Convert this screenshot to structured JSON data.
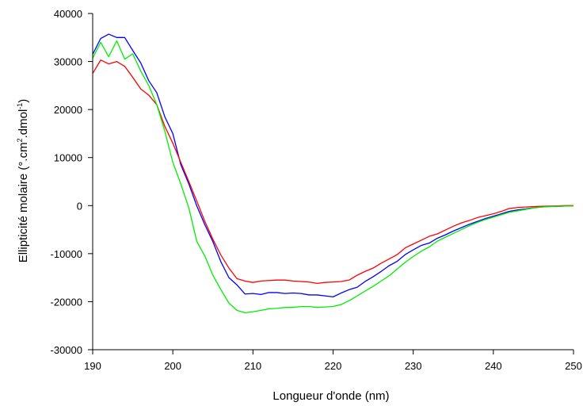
{
  "chart_data": {
    "type": "line",
    "title": "",
    "xlabel": "Longueur d'onde (nm)",
    "ylabel": {
      "before": "Ellipticité molaire (°.cm",
      "sup1": "2",
      "middle": ".dmol",
      "sup2": "-1",
      "after": ")"
    },
    "xlim": [
      190,
      250
    ],
    "ylim": [
      -30000,
      40000
    ],
    "x_ticks": [
      "190",
      "200",
      "210",
      "220",
      "230",
      "240",
      "250"
    ],
    "y_ticks": [
      "-30000",
      "-20000",
      "-10000",
      "0",
      "10000",
      "20000",
      "30000",
      "40000"
    ],
    "grid": false,
    "legend": "none",
    "series": [
      {
        "color": "#0000ff",
        "points": [
          [
            190,
            31500
          ],
          [
            191,
            34800
          ],
          [
            192,
            35700
          ],
          [
            193,
            35000
          ],
          [
            194,
            35000
          ],
          [
            195,
            32300
          ],
          [
            196,
            29700
          ],
          [
            197,
            26000
          ],
          [
            198,
            23500
          ],
          [
            199,
            18500
          ],
          [
            200,
            15000
          ],
          [
            201,
            8500
          ],
          [
            202,
            4500
          ],
          [
            203,
            -100
          ],
          [
            204,
            -4000
          ],
          [
            205,
            -7500
          ],
          [
            206,
            -11700
          ],
          [
            207,
            -15000
          ],
          [
            208,
            -16500
          ],
          [
            209,
            -18400
          ],
          [
            210,
            -18300
          ],
          [
            211,
            -18500
          ],
          [
            212,
            -18100
          ],
          [
            213,
            -18100
          ],
          [
            214,
            -18300
          ],
          [
            215,
            -18200
          ],
          [
            216,
            -18300
          ],
          [
            217,
            -18600
          ],
          [
            218,
            -18600
          ],
          [
            219,
            -18800
          ],
          [
            220,
            -19000
          ],
          [
            221,
            -18200
          ],
          [
            222,
            -17500
          ],
          [
            223,
            -17000
          ],
          [
            224,
            -15800
          ],
          [
            225,
            -14800
          ],
          [
            226,
            -13700
          ],
          [
            227,
            -12500
          ],
          [
            228,
            -11600
          ],
          [
            229,
            -10200
          ],
          [
            230,
            -9200
          ],
          [
            231,
            -8300
          ],
          [
            232,
            -7800
          ],
          [
            233,
            -6800
          ],
          [
            234,
            -6100
          ],
          [
            235,
            -5300
          ],
          [
            236,
            -4600
          ],
          [
            237,
            -3900
          ],
          [
            238,
            -3300
          ],
          [
            239,
            -2700
          ],
          [
            240,
            -2200
          ],
          [
            241,
            -1700
          ],
          [
            242,
            -1200
          ],
          [
            243,
            -900
          ],
          [
            244,
            -700
          ],
          [
            245,
            -450
          ],
          [
            246,
            -300
          ],
          [
            247,
            -200
          ],
          [
            248,
            -150
          ],
          [
            249,
            -100
          ],
          [
            250,
            -100
          ]
        ]
      },
      {
        "color": "#ff0000",
        "points": [
          [
            190,
            27500
          ],
          [
            191,
            30300
          ],
          [
            192,
            29500
          ],
          [
            193,
            30000
          ],
          [
            194,
            29000
          ],
          [
            195,
            26700
          ],
          [
            196,
            24300
          ],
          [
            197,
            23000
          ],
          [
            198,
            21000
          ],
          [
            199,
            16500
          ],
          [
            200,
            13000
          ],
          [
            201,
            9000
          ],
          [
            202,
            5000
          ],
          [
            203,
            900
          ],
          [
            204,
            -3300
          ],
          [
            205,
            -7000
          ],
          [
            206,
            -10300
          ],
          [
            207,
            -13000
          ],
          [
            208,
            -15200
          ],
          [
            209,
            -15700
          ],
          [
            210,
            -16000
          ],
          [
            211,
            -15700
          ],
          [
            212,
            -15600
          ],
          [
            213,
            -15500
          ],
          [
            214,
            -15500
          ],
          [
            215,
            -15700
          ],
          [
            216,
            -15800
          ],
          [
            217,
            -15900
          ],
          [
            218,
            -16200
          ],
          [
            219,
            -16000
          ],
          [
            220,
            -15900
          ],
          [
            221,
            -15800
          ],
          [
            222,
            -15500
          ],
          [
            223,
            -14500
          ],
          [
            224,
            -13700
          ],
          [
            225,
            -13000
          ],
          [
            226,
            -12000
          ],
          [
            227,
            -11100
          ],
          [
            228,
            -10200
          ],
          [
            229,
            -8800
          ],
          [
            230,
            -8000
          ],
          [
            231,
            -7200
          ],
          [
            232,
            -6400
          ],
          [
            233,
            -5900
          ],
          [
            234,
            -5100
          ],
          [
            235,
            -4300
          ],
          [
            236,
            -3600
          ],
          [
            237,
            -3100
          ],
          [
            238,
            -2500
          ],
          [
            239,
            -2100
          ],
          [
            240,
            -1700
          ],
          [
            241,
            -1200
          ],
          [
            242,
            -600
          ],
          [
            243,
            -400
          ],
          [
            244,
            -300
          ],
          [
            245,
            -200
          ],
          [
            246,
            -150
          ],
          [
            247,
            -100
          ],
          [
            248,
            -50
          ],
          [
            249,
            0
          ],
          [
            250,
            0
          ]
        ]
      },
      {
        "color": "#00ee00",
        "points": [
          [
            190,
            30700
          ],
          [
            191,
            34000
          ],
          [
            192,
            31000
          ],
          [
            193,
            34300
          ],
          [
            194,
            30500
          ],
          [
            195,
            31600
          ],
          [
            196,
            28000
          ],
          [
            197,
            25000
          ],
          [
            198,
            21000
          ],
          [
            199,
            15500
          ],
          [
            200,
            9000
          ],
          [
            201,
            4500
          ],
          [
            202,
            -500
          ],
          [
            203,
            -7500
          ],
          [
            204,
            -10500
          ],
          [
            205,
            -14500
          ],
          [
            206,
            -17500
          ],
          [
            207,
            -20300
          ],
          [
            208,
            -21800
          ],
          [
            209,
            -22300
          ],
          [
            210,
            -22100
          ],
          [
            211,
            -21800
          ],
          [
            212,
            -21500
          ],
          [
            213,
            -21400
          ],
          [
            214,
            -21200
          ],
          [
            215,
            -21200
          ],
          [
            216,
            -21000
          ],
          [
            217,
            -21000
          ],
          [
            218,
            -21200
          ],
          [
            219,
            -21100
          ],
          [
            220,
            -21000
          ],
          [
            221,
            -20600
          ],
          [
            222,
            -19800
          ],
          [
            223,
            -18800
          ],
          [
            224,
            -17800
          ],
          [
            225,
            -16800
          ],
          [
            226,
            -15700
          ],
          [
            227,
            -14600
          ],
          [
            228,
            -13200
          ],
          [
            229,
            -11800
          ],
          [
            230,
            -10600
          ],
          [
            231,
            -9500
          ],
          [
            232,
            -8600
          ],
          [
            233,
            -7400
          ],
          [
            234,
            -6600
          ],
          [
            235,
            -5800
          ],
          [
            236,
            -5000
          ],
          [
            237,
            -4200
          ],
          [
            238,
            -3500
          ],
          [
            239,
            -2900
          ],
          [
            240,
            -2400
          ],
          [
            241,
            -1900
          ],
          [
            242,
            -1400
          ],
          [
            243,
            -1100
          ],
          [
            244,
            -800
          ],
          [
            245,
            -500
          ],
          [
            246,
            -300
          ],
          [
            247,
            -200
          ],
          [
            248,
            -150
          ],
          [
            249,
            -100
          ],
          [
            250,
            -100
          ]
        ]
      }
    ]
  }
}
